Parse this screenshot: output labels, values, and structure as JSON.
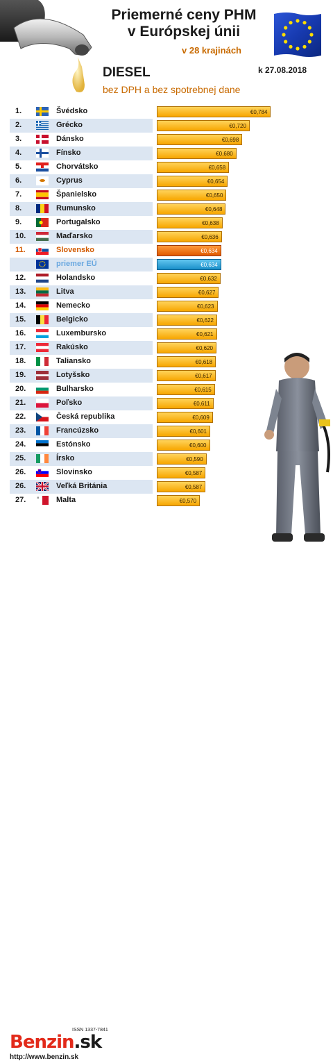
{
  "header": {
    "title_line1": "Priemerné ceny PHM",
    "title_line2": "v Európskej únii",
    "title_line3": "v 28 krajinách",
    "fuel": "DIESEL",
    "subtitle": "bez DPH a bez spotrebnej dane",
    "date": "k 27.08.2018"
  },
  "colors": {
    "bar": "#f7a600",
    "slovakia": "#e05a00",
    "eu_average": "#1a8fc9",
    "row_stripe": "#dce6f2"
  },
  "chart_data": {
    "type": "bar",
    "orientation": "horizontal",
    "title": "Priemerné ceny PHM v Európskej únii",
    "rows": [
      {
        "rank": "1.",
        "country": "Švédsko",
        "value": 0.784,
        "label": "€0,784",
        "flag": "se"
      },
      {
        "rank": "2.",
        "country": "Grécko",
        "value": 0.72,
        "label": "€0,720",
        "flag": "gr"
      },
      {
        "rank": "3.",
        "country": "Dánsko",
        "value": 0.698,
        "label": "€0,698",
        "flag": "dk"
      },
      {
        "rank": "4.",
        "country": "Fínsko",
        "value": 0.68,
        "label": "€0,680",
        "flag": "fi"
      },
      {
        "rank": "5.",
        "country": "Chorvátsko",
        "value": 0.658,
        "label": "€0,658",
        "flag": "hr"
      },
      {
        "rank": "6.",
        "country": "Cyprus",
        "value": 0.654,
        "label": "€0,654",
        "flag": "cy"
      },
      {
        "rank": "7.",
        "country": "Španielsko",
        "value": 0.65,
        "label": "€0,650",
        "flag": "es"
      },
      {
        "rank": "8.",
        "country": "Rumunsko",
        "value": 0.648,
        "label": "€0,648",
        "flag": "ro"
      },
      {
        "rank": "9.",
        "country": "Portugalsko",
        "value": 0.638,
        "label": "€0,638",
        "flag": "pt"
      },
      {
        "rank": "10.",
        "country": "Maďarsko",
        "value": 0.636,
        "label": "€0,636",
        "flag": "hu"
      },
      {
        "rank": "11.",
        "country": "Slovensko",
        "value": 0.634,
        "label": "€0,634",
        "flag": "sk",
        "highlight": "sk"
      },
      {
        "rank": "",
        "country": "priemer EÚ",
        "value": 0.634,
        "label": "€0,634",
        "flag": "eu",
        "highlight": "eu"
      },
      {
        "rank": "12.",
        "country": "Holandsko",
        "value": 0.632,
        "label": "€0,632",
        "flag": "nl"
      },
      {
        "rank": "13.",
        "country": "Litva",
        "value": 0.627,
        "label": "€0,627",
        "flag": "lt"
      },
      {
        "rank": "14.",
        "country": "Nemecko",
        "value": 0.623,
        "label": "€0,623",
        "flag": "de"
      },
      {
        "rank": "15.",
        "country": "Belgicko",
        "value": 0.622,
        "label": "€0,622",
        "flag": "be"
      },
      {
        "rank": "16.",
        "country": "Luxembursko",
        "value": 0.621,
        "label": "€0,621",
        "flag": "lu"
      },
      {
        "rank": "17.",
        "country": "Rakúsko",
        "value": 0.62,
        "label": "€0,620",
        "flag": "at"
      },
      {
        "rank": "18.",
        "country": "Taliansko",
        "value": 0.618,
        "label": "€0,618",
        "flag": "it"
      },
      {
        "rank": "19.",
        "country": "Lotyšsko",
        "value": 0.617,
        "label": "€0,617",
        "flag": "lv"
      },
      {
        "rank": "20.",
        "country": "Bulharsko",
        "value": 0.615,
        "label": "€0,615",
        "flag": "bg"
      },
      {
        "rank": "21.",
        "country": "Poľsko",
        "value": 0.611,
        "label": "€0,611",
        "flag": "pl"
      },
      {
        "rank": "22.",
        "country": "Česká republika",
        "value": 0.609,
        "label": "€0,609",
        "flag": "cz"
      },
      {
        "rank": "23.",
        "country": "Francúzsko",
        "value": 0.601,
        "label": "€0,601",
        "flag": "fr"
      },
      {
        "rank": "24.",
        "country": "Estónsko",
        "value": 0.6,
        "label": "€0,600",
        "flag": "ee"
      },
      {
        "rank": "25.",
        "country": "Írsko",
        "value": 0.59,
        "label": "€0,590",
        "flag": "ie"
      },
      {
        "rank": "26.",
        "country": "Slovinsko",
        "value": 0.587,
        "label": "€0,587",
        "flag": "si"
      },
      {
        "rank": "26.",
        "country": "Veľká Británia",
        "value": 0.587,
        "label": "€0,587",
        "flag": "gb"
      },
      {
        "rank": "27.",
        "country": "Malta",
        "value": 0.57,
        "label": "€0,570",
        "flag": "mt"
      }
    ],
    "xlim": [
      0.44,
      0.85
    ],
    "legend": "none",
    "grid": false
  },
  "footer": {
    "issn": "ISSN 1337-7841",
    "logo_main": "Benzin",
    "logo_suffix": ".sk",
    "url": "http://www.benzin.sk"
  }
}
